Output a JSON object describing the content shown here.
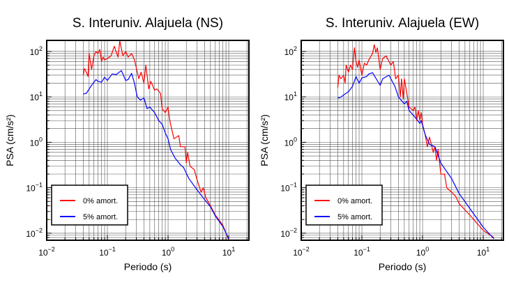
{
  "chart_data": [
    {
      "type": "line",
      "title": "S. Interuniv. Alajuela (NS)",
      "xlabel": "Periodo (s)",
      "ylabel": "PSA (cm/s²)",
      "xscale": "log",
      "yscale": "log",
      "xlim": [
        0.01,
        21.5
      ],
      "ylim": [
        0.007,
        175
      ],
      "grid": true,
      "legend_position": "bottom-left",
      "xticks": [
        {
          "v": 0.01,
          "b": "10",
          "e": "−2"
        },
        {
          "v": 0.1,
          "b": "10",
          "e": "−1"
        },
        {
          "v": 1,
          "b": "10",
          "e": "0"
        },
        {
          "v": 10,
          "b": "10",
          "e": "1"
        }
      ],
      "yticks": [
        {
          "v": 100,
          "b": "10",
          "e": "2"
        },
        {
          "v": 10,
          "b": "10",
          "e": "1"
        },
        {
          "v": 1,
          "b": "10",
          "e": "0"
        },
        {
          "v": 0.1,
          "b": "10",
          "e": "−1"
        },
        {
          "v": 0.01,
          "b": "10",
          "e": "−2"
        }
      ],
      "series": [
        {
          "name": "0% amort.",
          "color": "#ff0000",
          "x": [
            0.04,
            0.042,
            0.045,
            0.048,
            0.05,
            0.055,
            0.06,
            0.065,
            0.07,
            0.075,
            0.08,
            0.085,
            0.09,
            0.1,
            0.115,
            0.13,
            0.15,
            0.16,
            0.18,
            0.2,
            0.22,
            0.25,
            0.28,
            0.33,
            0.36,
            0.4,
            0.43,
            0.48,
            0.52,
            0.6,
            0.65,
            0.75,
            0.8,
            0.9,
            1.0,
            1.05,
            1.1,
            1.25,
            1.5,
            1.6,
            1.9,
            2.0,
            2.1,
            2.3,
            2.7,
            3.0,
            3.5,
            3.8,
            4.2,
            5,
            6,
            7,
            8,
            9,
            10
          ],
          "y": [
            30,
            42,
            35,
            28,
            90,
            40,
            80,
            100,
            90,
            110,
            60,
            75,
            65,
            70,
            80,
            130,
            75,
            170,
            80,
            100,
            75,
            90,
            65,
            25,
            35,
            20,
            50,
            15,
            22,
            14,
            15,
            12,
            5.5,
            4.5,
            6,
            3.5,
            2.5,
            1.2,
            1.4,
            0.8,
            0.8,
            0.35,
            0.6,
            0.3,
            0.25,
            0.15,
            0.08,
            0.1,
            0.06,
            0.04,
            0.025,
            0.019,
            0.015,
            0.01,
            0.007
          ]
        },
        {
          "name": "5% amort.",
          "color": "#0000ff",
          "x": [
            0.04,
            0.045,
            0.055,
            0.065,
            0.07,
            0.08,
            0.09,
            0.1,
            0.12,
            0.14,
            0.17,
            0.2,
            0.22,
            0.25,
            0.28,
            0.31,
            0.35,
            0.4,
            0.45,
            0.5,
            0.6,
            0.7,
            0.8,
            0.9,
            1.0,
            1.1,
            1.3,
            1.6,
            1.8,
            2.2,
            3,
            4,
            5,
            6,
            8,
            10
          ],
          "y": [
            11.5,
            12,
            18,
            24,
            22,
            21,
            27,
            23,
            32,
            31,
            38,
            23,
            24,
            33,
            20,
            10,
            8.5,
            9.5,
            5.5,
            6,
            4.5,
            3,
            2.5,
            1.6,
            1.2,
            0.7,
            0.45,
            0.32,
            0.28,
            0.16,
            0.09,
            0.055,
            0.038,
            0.024,
            0.014,
            0.0075
          ]
        }
      ]
    },
    {
      "type": "line",
      "title": "S. Interuniv. Alajuela (EW)",
      "xlabel": "Periodo (s)",
      "ylabel": "PSA (cm/s²)",
      "xscale": "log",
      "yscale": "log",
      "xlim": [
        0.01,
        21.5
      ],
      "ylim": [
        0.007,
        175
      ],
      "grid": true,
      "legend_position": "bottom-left",
      "xticks": [
        {
          "v": 0.01,
          "b": "10",
          "e": "−2"
        },
        {
          "v": 0.1,
          "b": "10",
          "e": "−1"
        },
        {
          "v": 1,
          "b": "10",
          "e": "0"
        },
        {
          "v": 10,
          "b": "10",
          "e": "1"
        }
      ],
      "yticks": [
        {
          "v": 100,
          "b": "10",
          "e": "2"
        },
        {
          "v": 10,
          "b": "10",
          "e": "1"
        },
        {
          "v": 1,
          "b": "10",
          "e": "0"
        },
        {
          "v": 0.1,
          "b": "10",
          "e": "−1"
        },
        {
          "v": 0.01,
          "b": "10",
          "e": "−2"
        }
      ],
      "series": [
        {
          "name": "0% amort.",
          "color": "#ff0000",
          "x": [
            0.04,
            0.042,
            0.045,
            0.05,
            0.053,
            0.055,
            0.06,
            0.065,
            0.07,
            0.075,
            0.08,
            0.085,
            0.09,
            0.1,
            0.11,
            0.12,
            0.13,
            0.15,
            0.16,
            0.17,
            0.18,
            0.2,
            0.22,
            0.25,
            0.3,
            0.33,
            0.36,
            0.4,
            0.43,
            0.45,
            0.48,
            0.5,
            0.55,
            0.6,
            0.7,
            0.75,
            0.8,
            0.85,
            0.9,
            0.95,
            1.0,
            1.1,
            1.2,
            1.3,
            1.5,
            1.6,
            1.7,
            1.8,
            2.0,
            2.3,
            2.5,
            3,
            3.5,
            4,
            6,
            10,
            15
          ],
          "y": [
            16,
            30,
            25,
            30,
            20,
            50,
            35,
            50,
            40,
            120,
            60,
            45,
            65,
            30,
            55,
            50,
            65,
            90,
            140,
            95,
            120,
            40,
            70,
            80,
            50,
            60,
            25,
            30,
            10,
            25,
            9,
            25,
            12,
            6,
            5,
            6,
            3,
            5,
            3,
            4.5,
            2.5,
            1.5,
            0.8,
            1.3,
            0.6,
            0.8,
            0.4,
            0.7,
            0.2,
            0.2,
            0.1,
            0.08,
            0.065,
            0.045,
            0.025,
            0.0115,
            0.008
          ]
        },
        {
          "name": "5% amort.",
          "color": "#0000ff",
          "x": [
            0.04,
            0.045,
            0.05,
            0.06,
            0.07,
            0.08,
            0.09,
            0.1,
            0.12,
            0.13,
            0.15,
            0.2,
            0.22,
            0.28,
            0.35,
            0.4,
            0.5,
            0.55,
            0.6,
            0.7,
            0.8,
            0.9,
            0.95,
            1.1,
            1.3,
            1.6,
            2.0,
            3,
            4,
            6,
            10,
            15
          ],
          "y": [
            9.5,
            9.8,
            11,
            13,
            17,
            28,
            20,
            26,
            28,
            32,
            34,
            18,
            25,
            30,
            17,
            10,
            7,
            8,
            5,
            4,
            3.2,
            2.6,
            3,
            1.5,
            0.9,
            0.8,
            0.35,
            0.16,
            0.075,
            0.035,
            0.0135,
            0.0075
          ]
        }
      ]
    }
  ]
}
